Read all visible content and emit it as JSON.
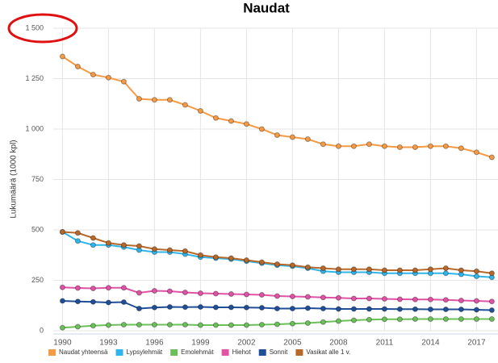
{
  "chart_data": {
    "type": "line",
    "title": "Naudat",
    "y_label": "Lukumäärä (1000 kpl)",
    "x": [
      1990,
      1991,
      1992,
      1993,
      1994,
      1995,
      1996,
      1997,
      1998,
      1999,
      2000,
      2001,
      2002,
      2003,
      2004,
      2005,
      2006,
      2007,
      2008,
      2009,
      2010,
      2011,
      2012,
      2013,
      2014,
      2015,
      2016,
      2017,
      2018
    ],
    "xlim": [
      1989.4,
      2018.4
    ],
    "xticks": [
      1990,
      1993,
      1996,
      1999,
      2002,
      2005,
      2008,
      2011,
      2014,
      2017
    ],
    "ylim": [
      0,
      1500
    ],
    "yticks": [
      0,
      250,
      500,
      750,
      {
        "value": 1000,
        "label": "1 000"
      },
      {
        "value": 1250,
        "label": "1 250"
      },
      {
        "value": 1500,
        "label": "1 500"
      }
    ],
    "grid": true,
    "legend": "bottom",
    "series": [
      {
        "name": "Naudat yhteensä",
        "color": "#f59a45",
        "values": [
          1360,
          1310,
          1270,
          1255,
          1235,
          1150,
          1145,
          1145,
          1120,
          1090,
          1055,
          1040,
          1025,
          1000,
          970,
          960,
          950,
          925,
          915,
          915,
          925,
          915,
          910,
          910,
          915,
          915,
          905,
          885,
          860
        ]
      },
      {
        "name": "Lypsylehmät",
        "color": "#2fb5ec",
        "values": [
          490,
          445,
          425,
          425,
          415,
          400,
          390,
          390,
          380,
          365,
          360,
          355,
          345,
          335,
          325,
          320,
          310,
          295,
          290,
          290,
          290,
          285,
          285,
          285,
          285,
          285,
          280,
          270,
          265
        ]
      },
      {
        "name": "Emolehmät",
        "color": "#6cc05a",
        "values": [
          15,
          20,
          25,
          28,
          30,
          30,
          30,
          30,
          30,
          28,
          28,
          28,
          28,
          30,
          32,
          35,
          38,
          43,
          48,
          52,
          55,
          57,
          57,
          58,
          58,
          58,
          58,
          58,
          58
        ]
      },
      {
        "name": "Hiehot",
        "color": "#e052a6",
        "values": [
          215,
          212,
          210,
          213,
          213,
          188,
          198,
          196,
          190,
          186,
          184,
          182,
          180,
          178,
          172,
          170,
          168,
          165,
          163,
          160,
          160,
          158,
          156,
          155,
          155,
          153,
          150,
          148,
          145
        ]
      },
      {
        "name": "Sonnit",
        "color": "#1f4f98",
        "values": [
          148,
          145,
          143,
          140,
          142,
          110,
          115,
          118,
          117,
          118,
          116,
          116,
          115,
          114,
          110,
          110,
          112,
          110,
          108,
          108,
          108,
          108,
          107,
          107,
          106,
          106,
          106,
          104,
          102
        ]
      },
      {
        "name": "Vasikat alle 1 v.",
        "color": "#b8692a",
        "values": [
          490,
          485,
          460,
          435,
          425,
          420,
          405,
          400,
          395,
          375,
          365,
          360,
          350,
          340,
          330,
          325,
          315,
          310,
          305,
          305,
          305,
          300,
          300,
          300,
          305,
          310,
          300,
          295,
          285
        ]
      }
    ]
  }
}
